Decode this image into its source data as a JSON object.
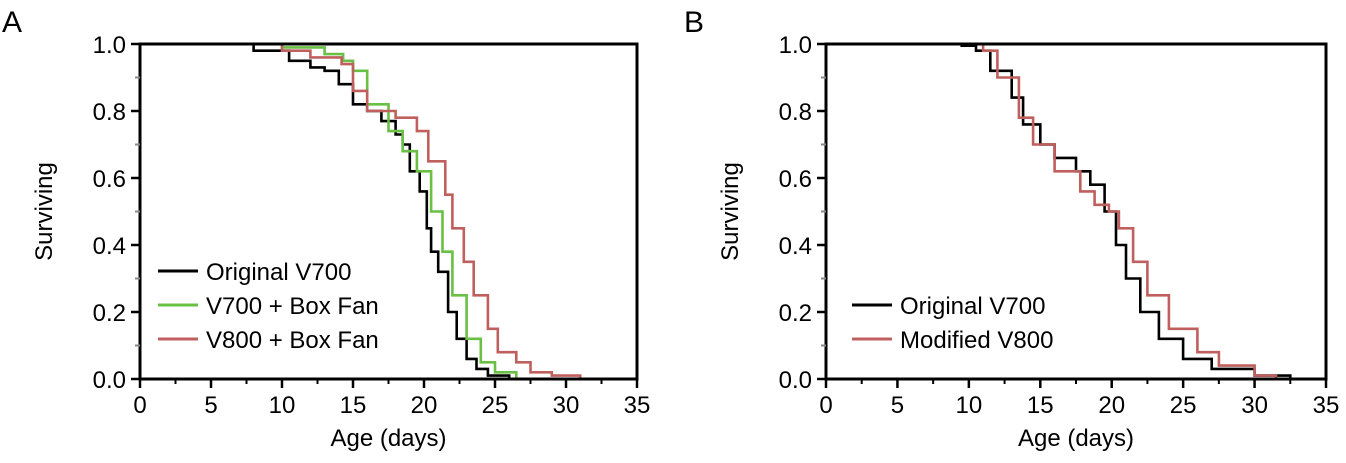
{
  "chart_data": [
    {
      "panel": "A",
      "type": "line",
      "step": true,
      "title": "",
      "xlabel": "Age (days)",
      "ylabel": "Surviving",
      "xlim": [
        0,
        35
      ],
      "ylim": [
        0,
        1.0
      ],
      "xticks": [
        "0",
        "5",
        "10",
        "15",
        "20",
        "25",
        "30",
        "35"
      ],
      "yticks": [
        "0.0",
        "0.2",
        "0.4",
        "0.6",
        "0.8",
        "1.0"
      ],
      "legend_position": "bottom-left",
      "series": [
        {
          "name": "Original V700",
          "color": "#000000",
          "x": [
            0,
            7,
            8,
            10.5,
            12,
            13,
            14,
            15,
            16,
            17,
            18,
            18.5,
            19,
            19.7,
            20.2,
            20.5,
            21,
            21.7,
            22.3,
            23,
            23.7,
            24.5,
            26
          ],
          "y": [
            1.0,
            1.0,
            0.98,
            0.95,
            0.93,
            0.92,
            0.88,
            0.82,
            0.8,
            0.77,
            0.73,
            0.7,
            0.62,
            0.56,
            0.45,
            0.38,
            0.32,
            0.2,
            0.12,
            0.06,
            0.03,
            0.01,
            0.0
          ]
        },
        {
          "name": "V700 + Box Fan",
          "color": "#6abf45",
          "x": [
            0,
            8,
            10,
            13,
            14.3,
            15,
            16,
            17.5,
            18.5,
            19.5,
            20.5,
            21.3,
            22,
            23,
            24,
            25,
            26.5
          ],
          "y": [
            1.0,
            1.0,
            0.99,
            0.97,
            0.95,
            0.92,
            0.82,
            0.74,
            0.68,
            0.62,
            0.5,
            0.38,
            0.25,
            0.12,
            0.05,
            0.02,
            0.0
          ]
        },
        {
          "name": "V800 + Box Fan",
          "color": "#c0605e",
          "x": [
            0,
            8.5,
            10,
            12,
            14.2,
            15,
            16,
            18,
            19.5,
            20.3,
            21.5,
            22,
            22.8,
            23.5,
            24.5,
            25.2,
            26.5,
            27.5,
            29,
            31
          ],
          "y": [
            1.0,
            1.0,
            0.98,
            0.96,
            0.94,
            0.86,
            0.8,
            0.78,
            0.74,
            0.65,
            0.55,
            0.45,
            0.35,
            0.25,
            0.15,
            0.08,
            0.05,
            0.02,
            0.01,
            0.0
          ]
        }
      ]
    },
    {
      "panel": "B",
      "type": "line",
      "step": true,
      "title": "",
      "xlabel": "Age (days)",
      "ylabel": "Surviving",
      "xlim": [
        0,
        35
      ],
      "ylim": [
        0,
        1.0
      ],
      "xticks": [
        "0",
        "5",
        "10",
        "15",
        "20",
        "25",
        "30",
        "35"
      ],
      "yticks": [
        "0.0",
        "0.2",
        "0.4",
        "0.6",
        "0.8",
        "1.0"
      ],
      "legend_position": "bottom-left",
      "series": [
        {
          "name": "Original V700",
          "color": "#000000",
          "x": [
            0,
            7,
            9.5,
            10.5,
            11.5,
            13,
            13.8,
            15,
            16,
            17.5,
            18.5,
            19.5,
            20.3,
            21,
            22,
            23.3,
            25,
            27,
            30,
            32.5
          ],
          "y": [
            1.0,
            1.0,
            0.995,
            0.98,
            0.92,
            0.84,
            0.76,
            0.7,
            0.66,
            0.62,
            0.58,
            0.5,
            0.4,
            0.3,
            0.2,
            0.12,
            0.06,
            0.03,
            0.01,
            0.0
          ]
        },
        {
          "name": "Modified V800",
          "color": "#c0605e",
          "x": [
            0,
            9.5,
            11,
            12,
            13.5,
            14.5,
            16,
            17.8,
            18.8,
            19.8,
            20.5,
            21.5,
            22.5,
            24,
            26,
            27.5,
            30,
            31.5
          ],
          "y": [
            1.0,
            1.0,
            0.98,
            0.9,
            0.78,
            0.7,
            0.62,
            0.56,
            0.52,
            0.5,
            0.45,
            0.35,
            0.25,
            0.15,
            0.08,
            0.04,
            0.01,
            0.0
          ]
        }
      ]
    }
  ]
}
